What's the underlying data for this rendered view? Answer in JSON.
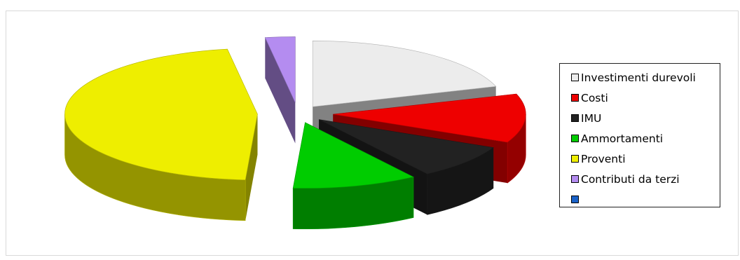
{
  "chart_data": {
    "type": "pie",
    "style": "3d-exploded",
    "legend": "right",
    "slices": [
      {
        "label": "Investimenti durevoli",
        "value": 20,
        "color": "#ececec"
      },
      {
        "label": "Costi",
        "value": 12,
        "color": "#ee0000"
      },
      {
        "label": "IMU",
        "value": 8.5,
        "color": "#222222"
      },
      {
        "label": "Ammortamenti",
        "value": 10.5,
        "color": "#00cc00"
      },
      {
        "label": "Proventi",
        "value": 46.5,
        "color": "#eeee00"
      },
      {
        "label": "Contributi da terzi",
        "value": 2.5,
        "color": "#b48cf0"
      },
      {
        "label": "",
        "value": 0,
        "color": "#1a62c8"
      }
    ]
  }
}
